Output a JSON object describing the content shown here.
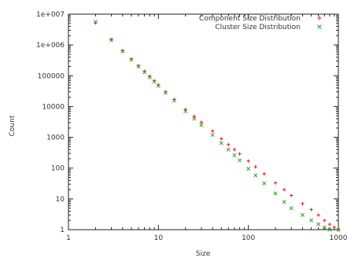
{
  "chart_data": {
    "type": "scatter",
    "xlabel": "Size",
    "ylabel": "Count",
    "xscale": "log",
    "yscale": "log",
    "xlim": [
      1,
      1000
    ],
    "ylim": [
      1,
      10000000
    ],
    "legend_position": "top-right",
    "grid": false,
    "x_tick_labels": [
      "1",
      "10",
      "100",
      "1000"
    ],
    "y_tick_labels": [
      "1",
      "10",
      "100",
      "1000",
      "10000",
      "100000",
      "1e+006",
      "1e+007"
    ],
    "series": [
      {
        "name": "Component Size Distribution",
        "marker": "plus",
        "color": "#e31a1c",
        "points": [
          [
            2,
            5200000
          ],
          [
            3,
            1500000
          ],
          [
            4,
            650000
          ],
          [
            5,
            350000
          ],
          [
            6,
            210000
          ],
          [
            7,
            140000
          ],
          [
            8,
            95000
          ],
          [
            9,
            68000
          ],
          [
            10,
            50000
          ],
          [
            12,
            30000
          ],
          [
            15,
            17000
          ],
          [
            20,
            8000
          ],
          [
            25,
            4800
          ],
          [
            30,
            3100
          ],
          [
            40,
            1600
          ],
          [
            50,
            900
          ],
          [
            60,
            580
          ],
          [
            70,
            400
          ],
          [
            80,
            290
          ],
          [
            100,
            170
          ],
          [
            120,
            110
          ],
          [
            150,
            65
          ],
          [
            200,
            33
          ],
          [
            250,
            20
          ],
          [
            300,
            13
          ],
          [
            400,
            7
          ],
          [
            500,
            4.5
          ],
          [
            600,
            3
          ],
          [
            700,
            2
          ],
          [
            800,
            1.5
          ],
          [
            900,
            1.2
          ],
          [
            1000,
            1
          ]
        ]
      },
      {
        "name": "Cluster Size Distribution",
        "marker": "cross",
        "color": "#33a02c",
        "points": [
          [
            2,
            5600000
          ],
          [
            3,
            1450000
          ],
          [
            4,
            620000
          ],
          [
            5,
            330000
          ],
          [
            6,
            200000
          ],
          [
            7,
            130000
          ],
          [
            8,
            90000
          ],
          [
            9,
            64000
          ],
          [
            10,
            47000
          ],
          [
            12,
            28000
          ],
          [
            15,
            15500
          ],
          [
            20,
            7000
          ],
          [
            25,
            4000
          ],
          [
            30,
            2500
          ],
          [
            40,
            1200
          ],
          [
            50,
            650
          ],
          [
            60,
            400
          ],
          [
            70,
            260
          ],
          [
            80,
            180
          ],
          [
            100,
            95
          ],
          [
            120,
            58
          ],
          [
            150,
            32
          ],
          [
            200,
            15
          ],
          [
            250,
            8
          ],
          [
            300,
            5
          ],
          [
            400,
            3
          ],
          [
            500,
            2
          ],
          [
            600,
            1.5
          ],
          [
            700,
            1.2
          ],
          [
            800,
            1
          ],
          [
            1000,
            1
          ]
        ]
      }
    ]
  }
}
